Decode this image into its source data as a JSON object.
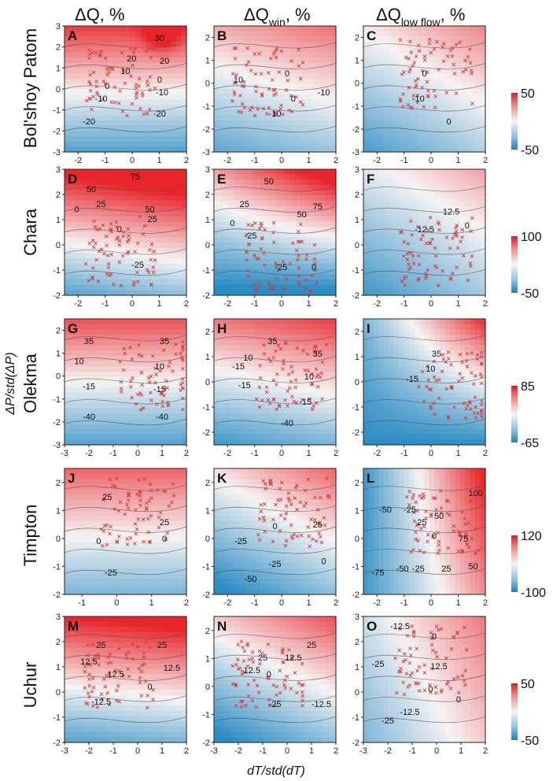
{
  "figure": {
    "column_titles": [
      "ΔQ, %",
      "ΔQ",
      "win",
      ", %",
      "ΔQ",
      "low flow",
      ", %"
    ],
    "xlabel": "dT/std(dT)",
    "ylabel": "ΔP/std(ΔP)",
    "colors": {
      "cold": "#2a8cc4",
      "mid": "#f6f3f3",
      "warm": "#e8262b",
      "cross": "#d63a3a",
      "contour": "#4a4a4a"
    }
  },
  "chart_data": [
    {
      "type": "heatmap",
      "panel": "A",
      "river": "Bol'shoy Patom",
      "col": 0,
      "xlim": [
        -2.5,
        2
      ],
      "ylim": [
        -3,
        3
      ],
      "xticks": [
        "-2",
        "-1",
        "0",
        "1",
        "2"
      ],
      "yticks": [
        "-3",
        "-2",
        "-1",
        "0",
        "1",
        "2",
        "3"
      ],
      "contour_labels": [
        "30",
        "20",
        "20",
        "10",
        "0",
        "0",
        "-10",
        "-10",
        "-20",
        "-20"
      ],
      "colorbar": null
    },
    {
      "type": "heatmap",
      "panel": "B",
      "river": "Bol'shoy Patom",
      "col": 1,
      "xlim": [
        -2.5,
        2
      ],
      "ylim": [
        -3,
        2.5
      ],
      "xticks": [
        "-2",
        "-1",
        "0",
        "1",
        "2"
      ],
      "yticks": [
        "-3",
        "-2",
        "-1",
        "0",
        "1",
        "2"
      ],
      "contour_labels": [
        "0",
        "10",
        "0",
        "-10",
        "-10"
      ],
      "colorbar": null
    },
    {
      "type": "heatmap",
      "panel": "C",
      "river": "Bol'shoy Patom",
      "col": 2,
      "xlim": [
        -2.5,
        2
      ],
      "ylim": [
        -3,
        2.5
      ],
      "xticks": [
        "-2",
        "-1",
        "0",
        "1",
        "2"
      ],
      "yticks": [
        "-3",
        "-2",
        "-1",
        "0",
        "1",
        "2"
      ],
      "contour_labels": [
        "0",
        "-10",
        "0"
      ],
      "colorbar": [
        "50",
        "-50"
      ]
    },
    {
      "type": "heatmap",
      "panel": "D",
      "river": "Chara",
      "col": 0,
      "xlim": [
        -2.5,
        2
      ],
      "ylim": [
        -2,
        3
      ],
      "xticks": [
        "-2",
        "-1",
        "0",
        "1",
        "2"
      ],
      "yticks": [
        "-2",
        "-1",
        "0",
        "1",
        "2",
        "3"
      ],
      "contour_labels": [
        "75",
        "50",
        "50",
        "25",
        "25",
        "0",
        "0",
        "-25"
      ],
      "colorbar": null
    },
    {
      "type": "heatmap",
      "panel": "E",
      "river": "Chara",
      "col": 1,
      "xlim": [
        -2.5,
        2
      ],
      "ylim": [
        -2,
        3
      ],
      "xticks": [
        "-2",
        "-1",
        "0",
        "1",
        "2"
      ],
      "yticks": [
        "-2",
        "-1",
        "0",
        "1",
        "2",
        "3"
      ],
      "contour_labels": [
        "50",
        "25",
        "0",
        "50",
        "75",
        "-25",
        "-25",
        "0"
      ],
      "colorbar": null
    },
    {
      "type": "heatmap",
      "panel": "F",
      "river": "Chara",
      "col": 2,
      "xlim": [
        -2.5,
        2
      ],
      "ylim": [
        -2,
        3
      ],
      "xticks": [
        "-2",
        "-1",
        "0",
        "1",
        "2"
      ],
      "yticks": [
        "-2",
        "-1",
        "0",
        "1",
        "2",
        "3"
      ],
      "contour_labels": [
        "12.5",
        "-12.5",
        "0"
      ],
      "colorbar": [
        "100",
        "-50"
      ]
    },
    {
      "type": "heatmap",
      "panel": "G",
      "river": "Olekma",
      "col": 0,
      "xlim": [
        -3,
        2
      ],
      "ylim": [
        -3,
        2.5
      ],
      "xticks": [
        "-3",
        "-2",
        "-1",
        "0",
        "1",
        "2"
      ],
      "yticks": [
        "-3",
        "-2",
        "-1",
        "0",
        "1",
        "2"
      ],
      "contour_labels": [
        "35",
        "35",
        "10",
        "10",
        "-15",
        "-15",
        "-40",
        "-40"
      ],
      "colorbar": null
    },
    {
      "type": "heatmap",
      "panel": "H",
      "river": "Olekma",
      "col": 1,
      "xlim": [
        -2.5,
        2
      ],
      "ylim": [
        -2.5,
        2.5
      ],
      "xticks": [
        "-2",
        "-1",
        "0",
        "1",
        "2"
      ],
      "yticks": [
        "-2",
        "-1",
        "0",
        "1",
        "2"
      ],
      "contour_labels": [
        "35",
        "35",
        "10",
        "-15",
        "10",
        "-15",
        "-15",
        "-40"
      ],
      "colorbar": null
    },
    {
      "type": "heatmap",
      "panel": "I",
      "river": "Olekma",
      "col": 2,
      "xlim": [
        -2.5,
        2
      ],
      "ylim": [
        -2.5,
        2.5
      ],
      "xticks": [
        "-2",
        "-1",
        "0",
        "1",
        "2"
      ],
      "yticks": [
        "-2",
        "-1",
        "0",
        "1",
        "2"
      ],
      "contour_labels": [
        "35",
        "10",
        "-15"
      ],
      "colorbar": [
        "85",
        "-65"
      ]
    },
    {
      "type": "heatmap",
      "panel": "J",
      "river": "Timpton",
      "col": 0,
      "xlim": [
        -1.5,
        2
      ],
      "ylim": [
        -2,
        2.5
      ],
      "xticks": [
        "-1",
        "0",
        "1",
        "2"
      ],
      "yticks": [
        "-2",
        "-1",
        "0",
        "1",
        "2"
      ],
      "contour_labels": [
        "25",
        "25",
        "0",
        "0",
        "-25"
      ],
      "colorbar": null
    },
    {
      "type": "heatmap",
      "panel": "K",
      "river": "Timpton",
      "col": 1,
      "xlim": [
        -2.5,
        2
      ],
      "ylim": [
        -2,
        2.5
      ],
      "xticks": [
        "-2",
        "-1",
        "0",
        "1",
        "2"
      ],
      "yticks": [
        "-2",
        "-1",
        "0",
        "1",
        "2"
      ],
      "contour_labels": [
        "25",
        "-25",
        "0",
        "-25",
        "0",
        "-50"
      ],
      "colorbar": null
    },
    {
      "type": "heatmap",
      "panel": "L",
      "river": "Timpton",
      "col": 2,
      "xlim": [
        -2.5,
        2
      ],
      "ylim": [
        -2,
        2.5
      ],
      "xticks": [
        "-2",
        "-1",
        "0",
        "1",
        "2"
      ],
      "yticks": [
        "-2",
        "-1",
        "0",
        "1",
        "2"
      ],
      "contour_labels": [
        "100",
        "-50",
        "-25",
        "25",
        "50",
        "0",
        "75",
        "-75",
        "-50",
        "-25",
        "25",
        "50"
      ],
      "colorbar": [
        "120",
        "-100"
      ]
    },
    {
      "type": "heatmap",
      "panel": "M",
      "river": "Uchur",
      "col": 0,
      "xlim": [
        -3,
        2
      ],
      "ylim": [
        -2,
        3
      ],
      "xticks": [
        "-3",
        "-2",
        "-1",
        "0",
        "1",
        "2"
      ],
      "yticks": [
        "-2",
        "-1",
        "0",
        "1",
        "2",
        "3"
      ],
      "contour_labels": [
        "25",
        "25",
        "12.5",
        "12.5",
        "12.5",
        "0",
        "-12.5"
      ],
      "colorbar": null
    },
    {
      "type": "heatmap",
      "panel": "N",
      "river": "Uchur",
      "col": 1,
      "xlim": [
        -3,
        2
      ],
      "ylim": [
        -2,
        2.5
      ],
      "xticks": [
        "-3",
        "-2",
        "-1",
        "0",
        "1",
        "2"
      ],
      "yticks": [
        "-2",
        "-1",
        "0",
        "1",
        "2"
      ],
      "contour_labels": [
        "25",
        "12.5",
        "-12.5",
        "0",
        "-25",
        "-12.5",
        "25"
      ],
      "colorbar": null
    },
    {
      "type": "heatmap",
      "panel": "O",
      "river": "Uchur",
      "col": 2,
      "xlim": [
        -3,
        2
      ],
      "ylim": [
        -2,
        3
      ],
      "xticks": [
        "-3",
        "-2",
        "-1",
        "0",
        "1",
        "2"
      ],
      "yticks": [
        "-2",
        "-1",
        "0",
        "1",
        "2",
        "3"
      ],
      "contour_labels": [
        "-12.5",
        "0",
        "-25",
        "12.5",
        "0",
        "0",
        "-25",
        "-12.5"
      ],
      "colorbar": [
        "50",
        "-50"
      ]
    }
  ]
}
